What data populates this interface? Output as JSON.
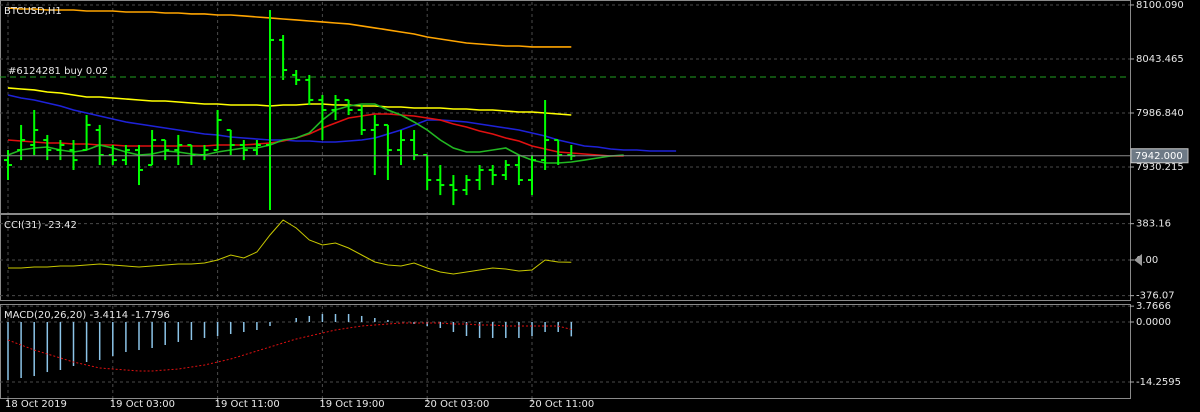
{
  "chart_data": [
    {
      "type": "ohlc",
      "title": "BTCUSD,H1",
      "ylim": [
        7882,
        8103.2
      ],
      "yticks": [
        {
          "value": 8100.09,
          "label": "8100.090"
        },
        8043.465,
        {
          "value": 7986.84,
          "label": "7986.840"
        },
        7930.215
      ],
      "grid": true,
      "ohlc": {
        "color": "#00ff00",
        "open": [
          7937.5,
          7948.0,
          7953.3,
          7958.5,
          7948.0,
          7948.0,
          7948.0,
          7969.0,
          7942.8,
          7937.5,
          7948.0,
          7932.3,
          7958.5,
          7948.0,
          7953.3,
          7942.8,
          7948.0,
          7969.0,
          7953.3,
          7948.0,
          7953.3,
          8063.4,
          8026.7,
          8021.5,
          8000.5,
          7990.0,
          8000.5,
          7990.0,
          7969.0,
          7974.3,
          7948.0,
          7958.5,
          7942.8,
          7916.6,
          7911.3,
          7906.1,
          7916.6,
          7927.1,
          7921.8,
          7932.3,
          7916.6,
          7937.5,
          7958.5,
          7942.8,
          null,
          null,
          null,
          null,
          null,
          null,
          null,
          null
        ],
        "high": [
          7948.0,
          7974.3,
          7990.0,
          7963.8,
          7958.5,
          7958.5,
          7984.7,
          7974.3,
          7953.3,
          7953.3,
          7953.3,
          7969.0,
          7958.5,
          7963.8,
          7953.3,
          7953.3,
          7990.0,
          7969.0,
          7958.5,
          7958.5,
          8094.8,
          8068.6,
          8031.9,
          8026.7,
          8005.7,
          8005.7,
          8000.5,
          7995.2,
          7984.7,
          7974.3,
          7969.0,
          7969.0,
          7942.8,
          7932.3,
          7921.8,
          7921.8,
          7932.3,
          7932.3,
          7937.5,
          7942.8,
          7942.8,
          8000.5,
          7958.5,
          7953.3,
          null,
          null,
          null,
          null,
          null,
          null,
          null,
          null
        ],
        "low": [
          7916.6,
          7937.5,
          7942.8,
          7937.5,
          7937.5,
          7927.1,
          7948.0,
          7932.3,
          7932.3,
          7932.3,
          7911.3,
          7932.3,
          7937.5,
          7932.3,
          7932.3,
          7937.5,
          7948.0,
          7942.8,
          7937.5,
          7942.8,
          7885.1,
          8021.5,
          8016.2,
          7995.2,
          7958.5,
          7979.5,
          7984.7,
          7963.8,
          7921.8,
          7916.6,
          7932.3,
          7937.5,
          7906.1,
          7900.8,
          7890.3,
          7900.8,
          7906.1,
          7911.3,
          7916.6,
          7911.3,
          7900.8,
          7927.1,
          7932.3,
          7937.5,
          null,
          null,
          null,
          null,
          null,
          null,
          null,
          null
        ],
        "close": [
          7932.3,
          7958.5,
          7969.0,
          7948.0,
          7953.3,
          7937.5,
          7974.3,
          7942.8,
          7937.5,
          7948.0,
          7927.1,
          7958.5,
          7948.0,
          7953.3,
          7942.8,
          7948.0,
          7979.5,
          7953.3,
          7948.0,
          7953.3,
          8063.4,
          8031.9,
          8021.5,
          8000.5,
          7990.0,
          8000.5,
          7990.0,
          7969.0,
          7974.3,
          7948.0,
          7958.5,
          7942.8,
          7916.6,
          7911.3,
          7906.1,
          7916.6,
          7927.1,
          7921.8,
          7932.3,
          7916.6,
          7937.5,
          7958.5,
          7942.8,
          7942.0,
          null,
          null,
          null,
          null,
          null,
          null,
          null,
          null
        ]
      },
      "lines": [
        {
          "color": "#ffa500",
          "values": [
            8096.9,
            8095.9,
            8095.9,
            8094.8,
            8094.8,
            8094.8,
            8093.8,
            8093.8,
            8093.8,
            8092.7,
            8092.7,
            8092.7,
            8091.7,
            8091.7,
            8090.7,
            8090.7,
            8089.6,
            8089.6,
            8088.6,
            8087.5,
            8086.5,
            8085.4,
            8084.4,
            8083.3,
            8082.3,
            8081.2,
            8080.2,
            8078.1,
            8076.0,
            8073.9,
            8071.8,
            8069.7,
            8066.5,
            8064.4,
            8062.3,
            8060.2,
            8059.2,
            8058.1,
            8057.1,
            8057.1,
            8056.1,
            8056.1,
            8056.1,
            8056.1,
            null,
            null,
            null,
            null,
            null,
            null,
            null,
            null
          ]
        },
        {
          "color": "#ffff00",
          "values": [
            8013.1,
            8012.0,
            8011.0,
            8008.9,
            8007.8,
            8005.7,
            8003.6,
            8003.6,
            8002.6,
            8001.5,
            8000.5,
            7999.4,
            7999.4,
            7998.4,
            7997.3,
            7996.3,
            7996.3,
            7995.2,
            7995.2,
            7995.2,
            7994.2,
            7995.2,
            7995.2,
            7996.3,
            7996.3,
            7995.2,
            7995.2,
            7994.2,
            7994.2,
            7993.1,
            7993.1,
            7992.1,
            7992.1,
            7992.1,
            7991.0,
            7991.0,
            7990.0,
            7990.0,
            7988.9,
            7987.9,
            7987.9,
            7986.8,
            7985.8,
            7984.7,
            null,
            null,
            null,
            null,
            null,
            null,
            null,
            null
          ]
        },
        {
          "color": "#1e22d8",
          "values": [
            8005.7,
            8002.6,
            8000.5,
            7997.3,
            7994.2,
            7990.0,
            7986.8,
            7983.7,
            7980.5,
            7977.4,
            7975.3,
            7973.2,
            7971.1,
            7969.0,
            7966.9,
            7964.8,
            7963.8,
            7961.7,
            7960.6,
            7959.6,
            7958.5,
            7958.5,
            7957.5,
            7957.5,
            7956.4,
            7956.4,
            7957.5,
            7958.5,
            7960.6,
            7964.8,
            7969.0,
            7974.3,
            7979.5,
            7979.5,
            7978.5,
            7977.4,
            7975.3,
            7973.2,
            7971.1,
            7969.0,
            7965.9,
            7962.7,
            7958.5,
            7955.4,
            7952.2,
            7951.2,
            7949.1,
            7948.0,
            7948.0,
            7947.0,
            7947.0,
            7947.0
          ]
        },
        {
          "color": "#e01010",
          "values": [
            7958.5,
            7957.5,
            7956.4,
            7955.4,
            7955.4,
            7954.3,
            7954.3,
            7953.3,
            7953.3,
            7952.2,
            7952.2,
            7952.2,
            7952.2,
            7952.2,
            7952.2,
            7952.2,
            7953.3,
            7953.3,
            7953.3,
            7954.3,
            7955.4,
            7957.5,
            7960.6,
            7964.8,
            7971.1,
            7976.4,
            7981.6,
            7983.7,
            7985.8,
            7985.8,
            7984.7,
            7983.7,
            7981.6,
            7979.5,
            7975.3,
            7972.2,
            7968.0,
            7964.8,
            7960.6,
            7957.5,
            7952.2,
            7949.1,
            7945.9,
            7944.9,
            7943.8,
            7942.8,
            7941.8,
            7941.8,
            null,
            null,
            null,
            null
          ]
        },
        {
          "color": "#22b822",
          "values": [
            7942.8,
            7948.0,
            7950.1,
            7951.2,
            7948.0,
            7945.9,
            7948.0,
            7953.3,
            7950.1,
            7945.9,
            7942.8,
            7943.8,
            7947.0,
            7945.9,
            7943.8,
            7942.8,
            7945.9,
            7948.0,
            7950.1,
            7950.1,
            7953.3,
            7958.5,
            7960.6,
            7965.9,
            7979.5,
            7990.0,
            7994.2,
            7996.3,
            7996.3,
            7990.0,
            7984.7,
            7977.4,
            7969.0,
            7958.5,
            7950.1,
            7945.9,
            7945.9,
            7948.0,
            7950.1,
            7942.8,
            7937.5,
            7934.4,
            7934.4,
            7935.5,
            7937.5,
            7939.7,
            7941.8,
            7942.8,
            null,
            null,
            null,
            null
          ]
        }
      ],
      "current_price": {
        "value": 7942,
        "label": "7942.000"
      },
      "order": {
        "price": 8024.6,
        "label": "#6124281 buy 0.02",
        "color": "#1fa01f"
      }
    },
    {
      "type": "line",
      "title": "CCI(31) -23.42",
      "ylim": [
        -422,
        464
      ],
      "yticks": [
        383.16,
        {
          "value": 0,
          "label": "0.00"
        },
        -376.07
      ],
      "grid": true,
      "color": "#c8c800",
      "values": [
        -84.4,
        -84.4,
        -73.9,
        -73.9,
        -63.3,
        -63.3,
        -52.8,
        -42.2,
        -52.8,
        -63.3,
        -73.9,
        -63.3,
        -52.8,
        -42.2,
        -42.2,
        -31.7,
        0,
        52.8,
        21.1,
        84.4,
        263.8,
        422,
        337.6,
        211,
        158.3,
        179.4,
        126.6,
        52.8,
        -21.1,
        -52.8,
        -63.3,
        -31.7,
        -84.4,
        -126.6,
        -147.7,
        -126.6,
        -105.5,
        -84.4,
        -95,
        -116,
        -105.5,
        0,
        -21.1,
        -23.42,
        null,
        null,
        null,
        null,
        null,
        null,
        null,
        null
      ]
    },
    {
      "type": "macd",
      "title": "MACD(20,26,20) -3.4114 -1.7796",
      "ylim": [
        -18.06,
        3.8
      ],
      "yticks": [
        3.7666,
        {
          "value": 0,
          "label": "0.0000"
        },
        -14.2595
      ],
      "grid": true,
      "categories": [
        "18 Oct 2019",
        null,
        null,
        null,
        null,
        null,
        null,
        null,
        "19 Oct 03:00",
        null,
        null,
        null,
        null,
        null,
        null,
        null,
        "19 Oct 11:00",
        null,
        null,
        null,
        null,
        null,
        null,
        null,
        "19 Oct 19:00",
        null,
        null,
        null,
        null,
        null,
        null,
        null,
        "20 Oct 03:00",
        null,
        null,
        null,
        null,
        null,
        null,
        null,
        "20 Oct 11:00",
        null,
        null,
        null,
        null,
        null,
        null,
        null,
        null,
        null,
        null,
        null
      ],
      "histogram": {
        "color": "#8cc4e8",
        "values": [
          -13.79,
          -13.31,
          -12.84,
          -11.89,
          -11.41,
          -10.46,
          -9.51,
          -9.03,
          -8.08,
          -7.13,
          -6.66,
          -6.18,
          -5.47,
          -4.75,
          -4.28,
          -3.8,
          -3.33,
          -2.85,
          -2.38,
          -1.9,
          -0.95,
          0,
          0.95,
          1.43,
          1.9,
          1.9,
          1.9,
          1.43,
          0.95,
          0.48,
          0,
          -0.48,
          -0.95,
          -1.43,
          -2.38,
          -3.33,
          -3.8,
          -3.8,
          -3.8,
          -3.8,
          -3.33,
          -2.38,
          -2.38,
          -3.4114,
          null,
          null,
          null,
          null,
          null,
          null,
          null,
          null
        ]
      },
      "signal": {
        "color": "#e01010",
        "values": [
          -4.28,
          -5.47,
          -6.66,
          -7.61,
          -8.56,
          -9.51,
          -10.22,
          -10.93,
          -11.17,
          -11.41,
          -11.65,
          -11.65,
          -11.41,
          -11.17,
          -10.7,
          -10.22,
          -9.51,
          -8.79,
          -7.84,
          -6.89,
          -5.94,
          -4.99,
          -4.04,
          -3.33,
          -2.61,
          -1.9,
          -1.43,
          -0.95,
          -0.71,
          -0.48,
          -0.24,
          -0.24,
          -0.24,
          -0.24,
          -0.48,
          -0.48,
          -0.71,
          -0.71,
          -0.95,
          -0.95,
          -0.95,
          -0.95,
          -0.95,
          -1.7796,
          null,
          null,
          null,
          null,
          null,
          null,
          null,
          null
        ]
      }
    }
  ]
}
